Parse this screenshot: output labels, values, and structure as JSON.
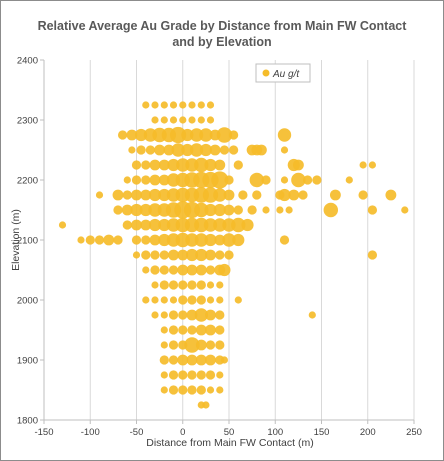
{
  "chart_data": {
    "type": "scatter",
    "subtype": "bubble",
    "title_line1": "Relative Average Au Grade by Distance from Main FW Contact",
    "title_line2": "and by Elevation",
    "xlabel": "Distance from Main FW Contact (m)",
    "ylabel": "Elevation (m)",
    "xlim": [
      -150,
      250
    ],
    "ylim": [
      1800,
      2400
    ],
    "x_ticks": [
      "-150",
      "-100",
      "-50",
      "0",
      "50",
      "100",
      "150",
      "200",
      "250"
    ],
    "y_ticks": [
      "1800",
      "1900",
      "2000",
      "2100",
      "2200",
      "2300",
      "2400"
    ],
    "grid": "vertical",
    "legend_position": "top-right",
    "series": [
      {
        "name": "Au g/t",
        "color": "#F5BC2A",
        "points": [
          [
            -40,
            2325,
            1
          ],
          [
            -30,
            2325,
            1
          ],
          [
            -20,
            2325,
            1
          ],
          [
            -10,
            2325,
            1
          ],
          [
            0,
            2325,
            1
          ],
          [
            10,
            2325,
            1
          ],
          [
            20,
            2325,
            1
          ],
          [
            30,
            2325,
            1
          ],
          [
            -30,
            2300,
            1
          ],
          [
            -20,
            2300,
            1
          ],
          [
            -10,
            2300,
            1
          ],
          [
            0,
            2300,
            1
          ],
          [
            10,
            2300,
            1
          ],
          [
            20,
            2300,
            1
          ],
          [
            30,
            2300,
            1
          ],
          [
            -65,
            2275,
            2
          ],
          [
            -55,
            2275,
            3
          ],
          [
            -45,
            2275,
            4
          ],
          [
            -35,
            2275,
            5
          ],
          [
            -25,
            2275,
            6
          ],
          [
            -15,
            2275,
            6
          ],
          [
            -5,
            2275,
            8
          ],
          [
            5,
            2275,
            4
          ],
          [
            15,
            2275,
            5
          ],
          [
            25,
            2275,
            5
          ],
          [
            35,
            2275,
            3
          ],
          [
            45,
            2275,
            7
          ],
          [
            55,
            2275,
            2
          ],
          [
            110,
            2275,
            5
          ],
          [
            -55,
            2250,
            1
          ],
          [
            -45,
            2250,
            2
          ],
          [
            -35,
            2250,
            2
          ],
          [
            -25,
            2250,
            3
          ],
          [
            -15,
            2250,
            3
          ],
          [
            -5,
            2250,
            5
          ],
          [
            5,
            2250,
            4
          ],
          [
            15,
            2250,
            5
          ],
          [
            25,
            2250,
            4
          ],
          [
            35,
            2250,
            3
          ],
          [
            45,
            2250,
            2
          ],
          [
            55,
            2250,
            2
          ],
          [
            75,
            2250,
            3
          ],
          [
            80,
            2250,
            3
          ],
          [
            85,
            2250,
            3
          ],
          [
            110,
            2250,
            1
          ],
          [
            -50,
            2225,
            2
          ],
          [
            -40,
            2225,
            2
          ],
          [
            -30,
            2225,
            3
          ],
          [
            -20,
            2225,
            3
          ],
          [
            -10,
            2225,
            4
          ],
          [
            0,
            2225,
            5
          ],
          [
            10,
            2225,
            5
          ],
          [
            20,
            2225,
            6
          ],
          [
            30,
            2225,
            4
          ],
          [
            40,
            2225,
            3
          ],
          [
            60,
            2225,
            2
          ],
          [
            120,
            2225,
            4
          ],
          [
            125,
            2225,
            3
          ],
          [
            195,
            2225,
            1
          ],
          [
            205,
            2225,
            1
          ],
          [
            -60,
            2200,
            1
          ],
          [
            -50,
            2200,
            2
          ],
          [
            -40,
            2200,
            2
          ],
          [
            -30,
            2200,
            3
          ],
          [
            -20,
            2200,
            3
          ],
          [
            -10,
            2200,
            5
          ],
          [
            0,
            2200,
            6
          ],
          [
            10,
            2200,
            7
          ],
          [
            20,
            2200,
            8
          ],
          [
            30,
            2200,
            8
          ],
          [
            40,
            2200,
            9
          ],
          [
            50,
            2200,
            2
          ],
          [
            80,
            2200,
            6
          ],
          [
            90,
            2200,
            2
          ],
          [
            110,
            2200,
            1
          ],
          [
            125,
            2200,
            6
          ],
          [
            135,
            2200,
            2
          ],
          [
            145,
            2200,
            2
          ],
          [
            180,
            2200,
            1
          ],
          [
            -90,
            2175,
            1
          ],
          [
            -70,
            2175,
            3
          ],
          [
            -60,
            2175,
            2
          ],
          [
            -50,
            2175,
            3
          ],
          [
            -40,
            2175,
            3
          ],
          [
            -30,
            2175,
            4
          ],
          [
            -20,
            2175,
            4
          ],
          [
            -10,
            2175,
            5
          ],
          [
            0,
            2175,
            6
          ],
          [
            10,
            2175,
            6
          ],
          [
            20,
            2175,
            7
          ],
          [
            30,
            2175,
            7
          ],
          [
            40,
            2175,
            5
          ],
          [
            50,
            2175,
            3
          ],
          [
            65,
            2175,
            2
          ],
          [
            80,
            2175,
            2
          ],
          [
            105,
            2175,
            2
          ],
          [
            110,
            2175,
            4
          ],
          [
            120,
            2175,
            3
          ],
          [
            130,
            2175,
            2
          ],
          [
            165,
            2175,
            3
          ],
          [
            195,
            2175,
            2
          ],
          [
            225,
            2175,
            3
          ],
          [
            -70,
            2150,
            2
          ],
          [
            -60,
            2150,
            3
          ],
          [
            -50,
            2150,
            4
          ],
          [
            -40,
            2150,
            4
          ],
          [
            -30,
            2150,
            5
          ],
          [
            -20,
            2150,
            5
          ],
          [
            -10,
            2150,
            7
          ],
          [
            0,
            2150,
            9
          ],
          [
            10,
            2150,
            8
          ],
          [
            20,
            2150,
            6
          ],
          [
            30,
            2150,
            4
          ],
          [
            40,
            2150,
            4
          ],
          [
            50,
            2150,
            3
          ],
          [
            60,
            2150,
            2
          ],
          [
            75,
            2150,
            2
          ],
          [
            90,
            2150,
            1
          ],
          [
            105,
            2150,
            1
          ],
          [
            115,
            2150,
            1
          ],
          [
            160,
            2150,
            6
          ],
          [
            205,
            2150,
            2
          ],
          [
            240,
            2150,
            1
          ],
          [
            -130,
            2125,
            1
          ],
          [
            -60,
            2125,
            2
          ],
          [
            -50,
            2125,
            3
          ],
          [
            -40,
            2125,
            3
          ],
          [
            -30,
            2125,
            4
          ],
          [
            -20,
            2125,
            4
          ],
          [
            -10,
            2125,
            5
          ],
          [
            0,
            2125,
            6
          ],
          [
            10,
            2125,
            6
          ],
          [
            20,
            2125,
            6
          ],
          [
            30,
            2125,
            5
          ],
          [
            40,
            2125,
            5
          ],
          [
            50,
            2125,
            5
          ],
          [
            60,
            2125,
            6
          ],
          [
            70,
            2125,
            4
          ],
          [
            -110,
            2100,
            1
          ],
          [
            -100,
            2100,
            2
          ],
          [
            -90,
            2100,
            2
          ],
          [
            -80,
            2100,
            3
          ],
          [
            -70,
            2100,
            2
          ],
          [
            -50,
            2100,
            2
          ],
          [
            -40,
            2100,
            2
          ],
          [
            -30,
            2100,
            3
          ],
          [
            -20,
            2100,
            4
          ],
          [
            -10,
            2100,
            5
          ],
          [
            0,
            2100,
            6
          ],
          [
            10,
            2100,
            5
          ],
          [
            20,
            2100,
            5
          ],
          [
            30,
            2100,
            4
          ],
          [
            40,
            2100,
            3
          ],
          [
            50,
            2100,
            5
          ],
          [
            60,
            2100,
            4
          ],
          [
            110,
            2100,
            2
          ],
          [
            -50,
            2075,
            1
          ],
          [
            -40,
            2075,
            2
          ],
          [
            -30,
            2075,
            2
          ],
          [
            -20,
            2075,
            2
          ],
          [
            -10,
            2075,
            3
          ],
          [
            0,
            2075,
            3
          ],
          [
            10,
            2075,
            4
          ],
          [
            20,
            2075,
            4
          ],
          [
            30,
            2075,
            3
          ],
          [
            40,
            2075,
            2
          ],
          [
            50,
            2075,
            2
          ],
          [
            205,
            2075,
            2
          ],
          [
            -40,
            2050,
            1
          ],
          [
            -30,
            2050,
            2
          ],
          [
            -20,
            2050,
            2
          ],
          [
            -10,
            2050,
            2
          ],
          [
            0,
            2050,
            3
          ],
          [
            10,
            2050,
            3
          ],
          [
            20,
            2050,
            3
          ],
          [
            30,
            2050,
            2
          ],
          [
            40,
            2050,
            3
          ],
          [
            45,
            2050,
            4
          ],
          [
            -30,
            2025,
            1
          ],
          [
            -20,
            2025,
            2
          ],
          [
            -10,
            2025,
            2
          ],
          [
            0,
            2025,
            2
          ],
          [
            10,
            2025,
            2
          ],
          [
            20,
            2025,
            2
          ],
          [
            30,
            2025,
            1
          ],
          [
            40,
            2025,
            1
          ],
          [
            -40,
            2000,
            1
          ],
          [
            -30,
            2000,
            1
          ],
          [
            -20,
            2000,
            1
          ],
          [
            -10,
            2000,
            1
          ],
          [
            0,
            2000,
            2
          ],
          [
            10,
            2000,
            2
          ],
          [
            20,
            2000,
            2
          ],
          [
            30,
            2000,
            1
          ],
          [
            40,
            2000,
            1
          ],
          [
            60,
            2000,
            1
          ],
          [
            -30,
            1975,
            1
          ],
          [
            -20,
            1975,
            1
          ],
          [
            -10,
            1975,
            2
          ],
          [
            0,
            1975,
            2
          ],
          [
            10,
            1975,
            3
          ],
          [
            20,
            1975,
            5
          ],
          [
            30,
            1975,
            3
          ],
          [
            40,
            1975,
            2
          ],
          [
            140,
            1975,
            1
          ],
          [
            -20,
            1950,
            1
          ],
          [
            -10,
            1950,
            2
          ],
          [
            0,
            1950,
            2
          ],
          [
            10,
            1950,
            2
          ],
          [
            20,
            1950,
            3
          ],
          [
            30,
            1950,
            3
          ],
          [
            40,
            1950,
            2
          ],
          [
            -20,
            1925,
            1
          ],
          [
            -10,
            1925,
            2
          ],
          [
            0,
            1925,
            2
          ],
          [
            10,
            1925,
            7
          ],
          [
            20,
            1925,
            3
          ],
          [
            30,
            1925,
            2
          ],
          [
            40,
            1925,
            2
          ],
          [
            -20,
            1900,
            2
          ],
          [
            -10,
            1900,
            2
          ],
          [
            0,
            1900,
            3
          ],
          [
            10,
            1900,
            3
          ],
          [
            20,
            1900,
            3
          ],
          [
            30,
            1900,
            3
          ],
          [
            40,
            1900,
            2
          ],
          [
            45,
            1900,
            1
          ],
          [
            -20,
            1875,
            1
          ],
          [
            -10,
            1875,
            2
          ],
          [
            0,
            1875,
            2
          ],
          [
            10,
            1875,
            2
          ],
          [
            20,
            1875,
            2
          ],
          [
            30,
            1875,
            2
          ],
          [
            40,
            1875,
            1
          ],
          [
            -20,
            1850,
            1
          ],
          [
            -10,
            1850,
            2
          ],
          [
            0,
            1850,
            2
          ],
          [
            10,
            1850,
            2
          ],
          [
            20,
            1850,
            2
          ],
          [
            30,
            1850,
            1
          ],
          [
            40,
            1850,
            1
          ],
          [
            20,
            1825,
            1
          ],
          [
            25,
            1825,
            1
          ]
        ]
      }
    ]
  }
}
